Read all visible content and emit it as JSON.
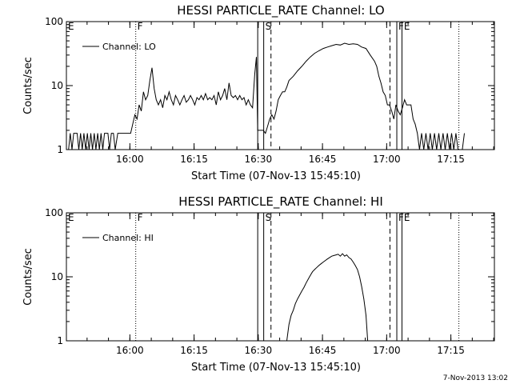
{
  "footer_timestamp": "7-Nov-2013 13:02",
  "chart_data": [
    {
      "type": "line",
      "title": "HESSI PARTICLE_RATE Channel: LO",
      "xlabel": "Start Time (07-Nov-13 15:45:10)",
      "ylabel": "Counts/sec",
      "y_scale": "log",
      "ylim": [
        1,
        100
      ],
      "y_ticks": [
        1,
        10,
        100
      ],
      "y_tick_labels": [
        "1",
        "10",
        "100"
      ],
      "xlim_minutes": [
        0,
        45.2
      ],
      "x_ticks": [
        {
          "minute": 14.83,
          "label": "16:00"
        },
        {
          "minute": 29.83,
          "label": "16:15"
        },
        {
          "minute": 44.83,
          "label": "16:30"
        },
        {
          "minute": 59.83,
          "label": "16:45"
        },
        {
          "minute": 74.83,
          "label": "17:00"
        },
        {
          "minute": 89.83,
          "label": "17:15"
        }
      ],
      "xlim": [
        0,
        100
      ],
      "legend": {
        "position": "top-left",
        "entries": [
          "Channel: LO"
        ]
      },
      "markers": [
        {
          "minute": 0,
          "label": "E",
          "style": "none"
        },
        {
          "minute": 16.2,
          "label": "F",
          "style": "dotted"
        },
        {
          "minute": 44.7,
          "label": "",
          "style": "solid"
        },
        {
          "minute": 46.1,
          "label": "S",
          "style": "solid"
        },
        {
          "minute": 47.8,
          "label": "",
          "style": "dashed"
        },
        {
          "minute": 75.6,
          "label": "",
          "style": "dashed"
        },
        {
          "minute": 77.2,
          "label": "FE",
          "style": "solid"
        },
        {
          "minute": 78.4,
          "label": "",
          "style": "solid"
        },
        {
          "minute": 91.7,
          "label": "",
          "style": "dotted"
        }
      ],
      "series": [
        {
          "name": "Channel: LO",
          "points": [
            [
              0.5,
              1
            ],
            [
              0.9,
              1.8
            ],
            [
              1.3,
              1
            ],
            [
              1.7,
              1.8
            ],
            [
              2.1,
              1.8
            ],
            [
              2.5,
              1.8
            ],
            [
              2.9,
              1
            ],
            [
              3.3,
              1.8
            ],
            [
              3.7,
              1
            ],
            [
              4.1,
              1.8
            ],
            [
              4.5,
              1
            ],
            [
              4.9,
              1.8
            ],
            [
              5.3,
              1
            ],
            [
              5.7,
              1.8
            ],
            [
              6.1,
              1
            ],
            [
              6.5,
              1.8
            ],
            [
              6.9,
              1
            ],
            [
              7.3,
              1.8
            ],
            [
              7.7,
              1
            ],
            [
              8.1,
              1.8
            ],
            [
              8.5,
              1
            ],
            [
              8.9,
              1.8
            ],
            [
              9.3,
              1.8
            ],
            [
              9.7,
              1.8
            ],
            [
              10.1,
              1
            ],
            [
              10.5,
              1.8
            ],
            [
              11.0,
              1.8
            ],
            [
              11.4,
              1
            ],
            [
              12.0,
              1.8
            ],
            [
              13.0,
              1.8
            ],
            [
              14.0,
              1.8
            ],
            [
              15.0,
              1.8
            ],
            [
              15.5,
              2.5
            ],
            [
              16.0,
              3.5
            ],
            [
              16.5,
              3
            ],
            [
              17.0,
              5
            ],
            [
              17.5,
              4
            ],
            [
              18.0,
              8
            ],
            [
              18.5,
              6
            ],
            [
              19.0,
              7
            ],
            [
              19.5,
              12
            ],
            [
              20.0,
              19
            ],
            [
              20.5,
              9
            ],
            [
              21.0,
              6
            ],
            [
              21.5,
              5
            ],
            [
              22.0,
              6
            ],
            [
              22.5,
              4.5
            ],
            [
              23.0,
              7
            ],
            [
              23.5,
              6
            ],
            [
              24.0,
              8
            ],
            [
              24.5,
              6
            ],
            [
              25.0,
              5
            ],
            [
              25.5,
              7
            ],
            [
              26.0,
              6
            ],
            [
              26.5,
              5
            ],
            [
              27.0,
              6
            ],
            [
              27.5,
              7
            ],
            [
              28.0,
              5.5
            ],
            [
              28.5,
              6
            ],
            [
              29.0,
              7
            ],
            [
              29.5,
              6
            ],
            [
              30.0,
              5
            ],
            [
              30.5,
              6.5
            ],
            [
              31.0,
              6
            ],
            [
              31.5,
              7
            ],
            [
              32.0,
              6
            ],
            [
              32.5,
              7.5
            ],
            [
              33.0,
              6
            ],
            [
              33.5,
              6.5
            ],
            [
              34.0,
              6
            ],
            [
              34.5,
              7
            ],
            [
              35.0,
              5
            ],
            [
              35.5,
              8
            ],
            [
              36.0,
              6
            ],
            [
              36.5,
              7
            ],
            [
              37.0,
              9
            ],
            [
              37.5,
              6
            ],
            [
              38.0,
              11
            ],
            [
              38.5,
              7
            ],
            [
              39.0,
              6.5
            ],
            [
              39.5,
              7
            ],
            [
              40.0,
              6
            ],
            [
              40.5,
              7
            ],
            [
              41.0,
              6
            ],
            [
              41.5,
              6.5
            ],
            [
              42.0,
              5
            ],
            [
              42.5,
              6
            ],
            [
              43.0,
              5
            ],
            [
              43.5,
              4.5
            ],
            [
              44.0,
              15
            ],
            [
              44.4,
              28
            ],
            [
              44.7,
              2
            ],
            [
              45.0,
              2
            ],
            [
              45.5,
              2
            ],
            [
              46.0,
              2
            ],
            [
              46.5,
              1.8
            ],
            [
              47.0,
              2.3
            ],
            [
              47.5,
              3
            ],
            [
              48.0,
              3.5
            ],
            [
              48.5,
              3
            ],
            [
              49.0,
              4
            ],
            [
              49.5,
              6
            ],
            [
              50.0,
              7
            ],
            [
              50.5,
              8
            ],
            [
              51.0,
              8
            ],
            [
              51.5,
              9.5
            ],
            [
              52.0,
              12
            ],
            [
              53.0,
              14
            ],
            [
              54.0,
              17
            ],
            [
              55.0,
              20
            ],
            [
              56.0,
              24
            ],
            [
              57.0,
              28
            ],
            [
              58.0,
              32
            ],
            [
              59.0,
              35
            ],
            [
              60.0,
              38
            ],
            [
              61.0,
              40
            ],
            [
              62.0,
              42
            ],
            [
              63.0,
              44
            ],
            [
              64.0,
              43
            ],
            [
              65.0,
              46
            ],
            [
              66.0,
              44
            ],
            [
              67.0,
              45
            ],
            [
              68.0,
              44
            ],
            [
              69.0,
              40
            ],
            [
              70.0,
              38
            ],
            [
              71.0,
              30
            ],
            [
              72.0,
              24
            ],
            [
              72.5,
              20
            ],
            [
              73.0,
              14
            ],
            [
              73.5,
              11
            ],
            [
              74.0,
              8
            ],
            [
              74.5,
              7
            ],
            [
              75.0,
              5
            ],
            [
              75.5,
              5
            ],
            [
              76.0,
              4
            ],
            [
              76.5,
              3
            ],
            [
              77.0,
              5
            ],
            [
              77.5,
              4
            ],
            [
              78.0,
              3.5
            ],
            [
              78.5,
              4.5
            ],
            [
              79.0,
              6
            ],
            [
              79.5,
              5
            ],
            [
              80.0,
              5
            ],
            [
              80.5,
              5
            ],
            [
              81.0,
              3
            ],
            [
              81.5,
              2.5
            ],
            [
              82.0,
              1.8
            ],
            [
              82.5,
              1
            ],
            [
              83.0,
              1.8
            ],
            [
              83.5,
              1
            ],
            [
              84.0,
              1.8
            ],
            [
              84.5,
              1
            ],
            [
              85.0,
              1.8
            ],
            [
              85.5,
              1
            ],
            [
              86.0,
              1.8
            ],
            [
              86.5,
              1
            ],
            [
              87.0,
              1.8
            ],
            [
              87.5,
              1
            ],
            [
              88.0,
              1.8
            ],
            [
              88.5,
              1
            ],
            [
              89.0,
              1.8
            ],
            [
              89.5,
              1
            ],
            [
              90.0,
              1.8
            ],
            [
              90.5,
              1
            ],
            [
              91.0,
              1.8
            ],
            [
              91.5,
              1
            ],
            [
              92.5,
              1
            ],
            [
              93.0,
              1.8
            ]
          ]
        }
      ]
    },
    {
      "type": "line",
      "title": "HESSI PARTICLE_RATE Channel: HI",
      "xlabel": "Start Time (07-Nov-13 15:45:10)",
      "ylabel": "Counts/sec",
      "y_scale": "log",
      "ylim": [
        1,
        100
      ],
      "y_ticks": [
        1,
        10,
        100
      ],
      "y_tick_labels": [
        "1",
        "10",
        "100"
      ],
      "x_ticks": [
        {
          "minute": 14.83,
          "label": "16:00"
        },
        {
          "minute": 29.83,
          "label": "16:15"
        },
        {
          "minute": 44.83,
          "label": "16:30"
        },
        {
          "minute": 59.83,
          "label": "16:45"
        },
        {
          "minute": 74.83,
          "label": "17:00"
        },
        {
          "minute": 89.83,
          "label": "17:15"
        }
      ],
      "xlim": [
        0,
        100
      ],
      "legend": {
        "position": "top-left",
        "entries": [
          "Channel: HI"
        ]
      },
      "markers": [
        {
          "minute": 0,
          "label": "E",
          "style": "none"
        },
        {
          "minute": 16.2,
          "label": "F",
          "style": "dotted"
        },
        {
          "minute": 44.7,
          "label": "",
          "style": "solid"
        },
        {
          "minute": 46.1,
          "label": "S",
          "style": "solid"
        },
        {
          "minute": 47.8,
          "label": "",
          "style": "dashed"
        },
        {
          "minute": 75.6,
          "label": "",
          "style": "dashed"
        },
        {
          "minute": 77.2,
          "label": "FE",
          "style": "solid"
        },
        {
          "minute": 78.4,
          "label": "",
          "style": "solid"
        },
        {
          "minute": 91.7,
          "label": "",
          "style": "dotted"
        }
      ],
      "series": [
        {
          "name": "Channel: HI",
          "points": [
            [
              51.5,
              1
            ],
            [
              52.0,
              1.8
            ],
            [
              52.5,
              2.5
            ],
            [
              53.0,
              3
            ],
            [
              53.5,
              3.8
            ],
            [
              54.0,
              4.5
            ],
            [
              54.5,
              5.2
            ],
            [
              55.0,
              6
            ],
            [
              55.5,
              6.8
            ],
            [
              56.0,
              8
            ],
            [
              56.5,
              9.2
            ],
            [
              57.0,
              10.5
            ],
            [
              57.5,
              12
            ],
            [
              58.0,
              13
            ],
            [
              58.5,
              14
            ],
            [
              59.0,
              15
            ],
            [
              59.5,
              16
            ],
            [
              60.0,
              17
            ],
            [
              60.5,
              18
            ],
            [
              61.0,
              19
            ],
            [
              61.5,
              20
            ],
            [
              62.0,
              21
            ],
            [
              62.5,
              21.5
            ],
            [
              63.0,
              22
            ],
            [
              63.5,
              22.5
            ],
            [
              64.0,
              21
            ],
            [
              64.5,
              23
            ],
            [
              65.0,
              21
            ],
            [
              65.5,
              22
            ],
            [
              66.0,
              20
            ],
            [
              66.5,
              19
            ],
            [
              67.0,
              17
            ],
            [
              67.5,
              15
            ],
            [
              68.0,
              13
            ],
            [
              68.5,
              10
            ],
            [
              69.0,
              7
            ],
            [
              69.5,
              4.5
            ],
            [
              70.0,
              2.5
            ],
            [
              70.4,
              1
            ]
          ]
        }
      ]
    }
  ]
}
